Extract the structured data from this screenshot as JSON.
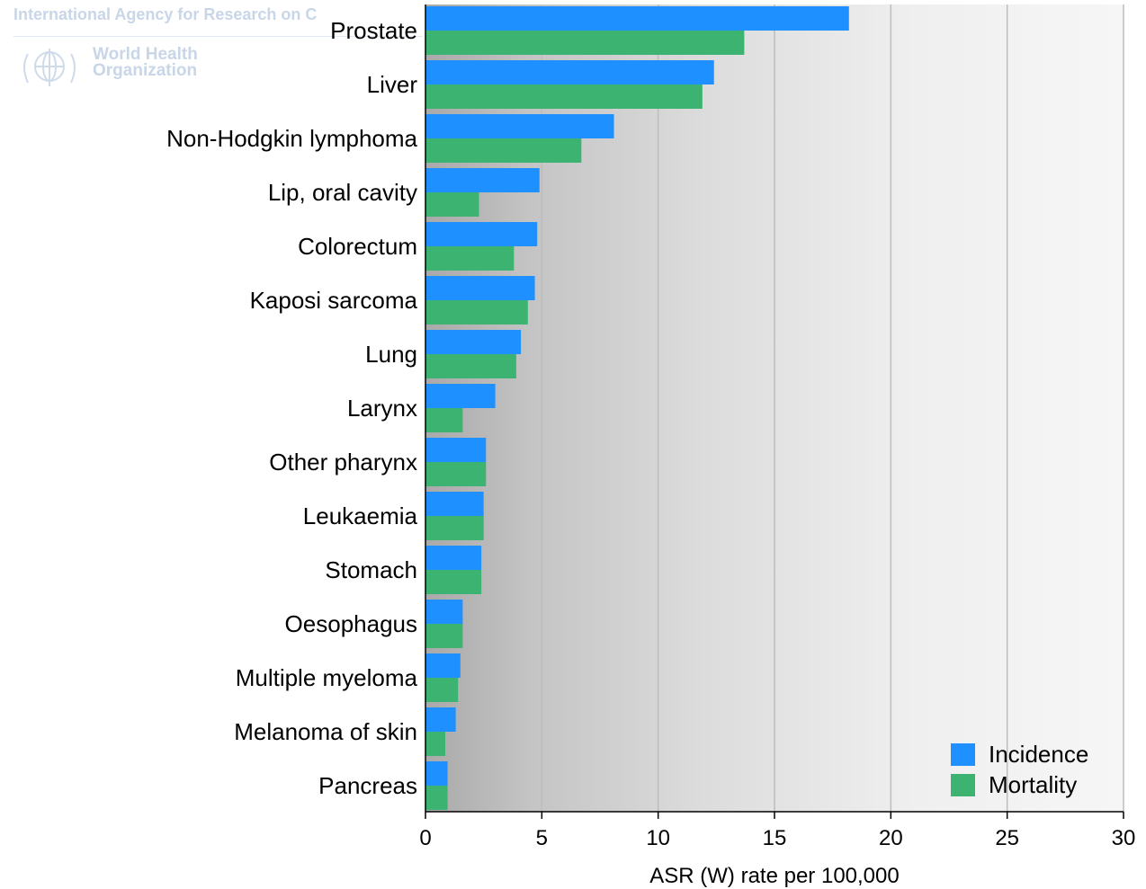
{
  "watermark": {
    "agency": "International Agency for Research on C",
    "org_line1": "World Health",
    "org_line2": "Organization"
  },
  "chart_data": {
    "type": "bar",
    "orientation": "horizontal",
    "categories": [
      "Prostate",
      "Liver",
      "Non-Hodgkin lymphoma",
      "Lip, oral cavity",
      "Colorectum",
      "Kaposi sarcoma",
      "Lung",
      "Larynx",
      "Other pharynx",
      "Leukaemia",
      "Stomach",
      "Oesophagus",
      "Multiple myeloma",
      "Melanoma of skin",
      "Pancreas"
    ],
    "series": [
      {
        "name": "Incidence",
        "color": "#1e90ff",
        "values": [
          18.2,
          12.4,
          8.1,
          4.9,
          4.8,
          4.7,
          4.1,
          3.0,
          2.6,
          2.5,
          2.4,
          1.6,
          1.5,
          1.3,
          0.95
        ]
      },
      {
        "name": "Mortality",
        "color": "#3cb371",
        "values": [
          13.7,
          11.9,
          6.7,
          2.3,
          3.8,
          4.4,
          3.9,
          1.6,
          2.6,
          2.5,
          2.4,
          1.6,
          1.4,
          0.85,
          0.95
        ]
      }
    ],
    "xlabel": "ASR (W) rate per 100,000",
    "xlim": [
      0,
      30
    ],
    "xticks": [
      0,
      5,
      10,
      15,
      20,
      25,
      30
    ],
    "grid": true,
    "legend_position": "bottom-right"
  }
}
